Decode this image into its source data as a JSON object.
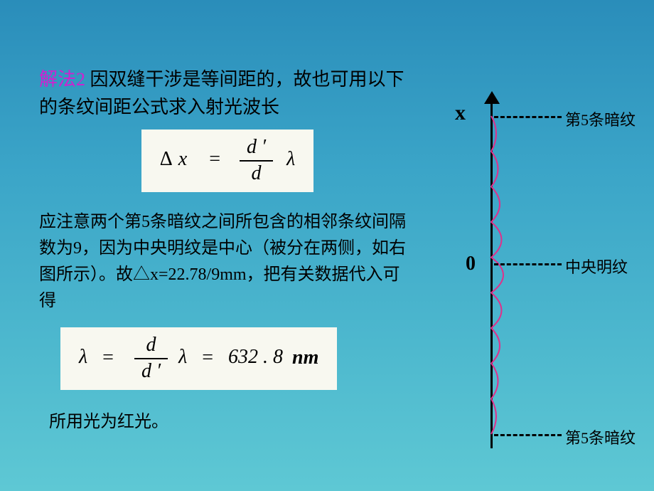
{
  "heading": {
    "method": "解法2",
    "rest": " 因双缝干涉是等间距的，故也可用以下的条纹间距公式求入射光波长"
  },
  "formula1": {
    "delta": "Δ",
    "var_x": "x",
    "eq": "=",
    "frac_num": "d ′",
    "frac_den": "d",
    "lambda": "λ"
  },
  "paragraph": "应注意两个第5条暗纹之间所包含的相邻条纹间隔数为9，因为中央明纹是中心（被分在两侧，如右图所示）。故△x=22.78/9mm，把有关数据代入可得",
  "formula2": {
    "lambda_l": "λ",
    "eq": "=",
    "frac_num": "d",
    "frac_den": "d ′",
    "lambda_r": "λ",
    "value": "632 . 8",
    "unit": "nm"
  },
  "conclusion": "所用光为红光。",
  "diagram": {
    "x_label": "x",
    "zero_label": "0",
    "label_top": "第5条暗纹",
    "label_mid": "中央明纹",
    "label_bot": "第5条暗纹",
    "wave_color": "#e0308a",
    "wave_stroke_width": 2,
    "dash_color": "#000000"
  }
}
